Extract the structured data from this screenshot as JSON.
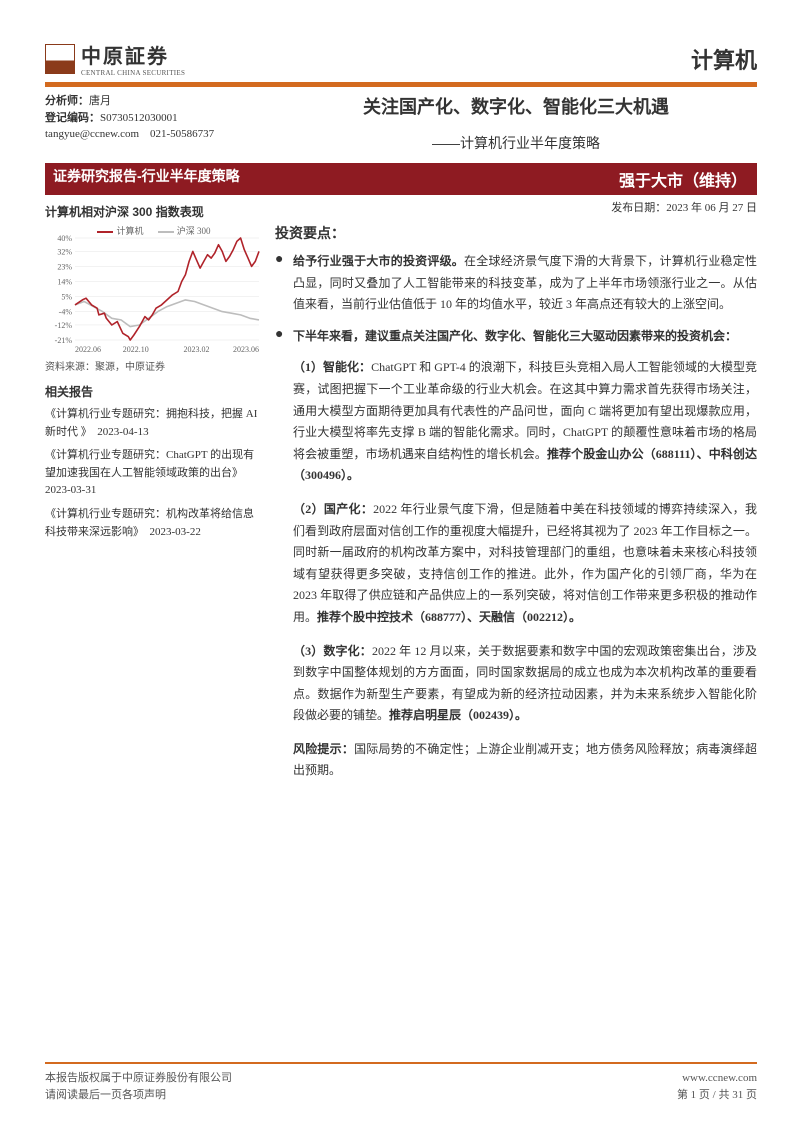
{
  "logo": {
    "name_cn": "中原証券",
    "name_en": "CENTRAL CHINA SECURITIES"
  },
  "sector": "计算机",
  "analyst": {
    "label": "分析师：",
    "name": "唐月",
    "cert_label": "登记编码：",
    "cert": "S0730512030001",
    "email": "tangyue@ccnew.com",
    "phone": "021-50586737"
  },
  "title": {
    "main": "关注国产化、数字化、智能化三大机遇",
    "sub": "——计算机行业半年度策略"
  },
  "red_strip": {
    "left": "证券研究报告-行业半年度策略",
    "right": "强于大市（维持）"
  },
  "publish": {
    "label": "发布日期：",
    "date": "2023 年 06 月 27 日"
  },
  "chart": {
    "title": "计算机相对沪深 300 指数表现",
    "source": "资料来源：聚源，中原证券",
    "series": [
      {
        "name": "计算机",
        "color": "#b0232a"
      },
      {
        "name": "沪深 300",
        "color": "#bdbdbd"
      }
    ],
    "y_ticks": [
      40,
      32,
      23,
      14,
      5,
      -4,
      -12,
      -21
    ],
    "x_labels": [
      "2022.06",
      "2022.10",
      "2023.02",
      "2023.06"
    ],
    "ylim": [
      -21,
      40
    ],
    "line_width": 1.6,
    "grid_color": "#e5e5e5",
    "background_color": "#ffffff",
    "tick_fontsize": 8,
    "legend_fontsize": 9,
    "computer_series_x": [
      0,
      0.04,
      0.06,
      0.09,
      0.12,
      0.13,
      0.16,
      0.17,
      0.2,
      0.23,
      0.26,
      0.29,
      0.3,
      0.32,
      0.35,
      0.38,
      0.4,
      0.42,
      0.44,
      0.47,
      0.5,
      0.53,
      0.56,
      0.58,
      0.6,
      0.62,
      0.64,
      0.66,
      0.68,
      0.7,
      0.72,
      0.74,
      0.76,
      0.78,
      0.8,
      0.82,
      0.84,
      0.86,
      0.88,
      0.9,
      0.92,
      0.94,
      0.96,
      0.98,
      1
    ],
    "computer_series_y": [
      0,
      3,
      4,
      0,
      -2,
      -6,
      -5,
      -8,
      -12,
      -10,
      -17,
      -19,
      -21,
      -18,
      -13,
      -7,
      -9,
      -6,
      -2,
      0,
      3,
      6,
      8,
      14,
      18,
      26,
      32,
      27,
      22,
      26,
      30,
      28,
      31,
      36,
      32,
      26,
      29,
      33,
      38,
      40,
      33,
      28,
      23,
      26,
      32
    ],
    "csi300_series_x": [
      0,
      0.05,
      0.1,
      0.15,
      0.2,
      0.25,
      0.3,
      0.35,
      0.4,
      0.45,
      0.5,
      0.55,
      0.6,
      0.65,
      0.7,
      0.75,
      0.8,
      0.85,
      0.9,
      0.95,
      1
    ],
    "csi300_series_y": [
      0,
      2,
      -1,
      -4,
      -8,
      -9,
      -13,
      -12,
      -8,
      -4,
      -1,
      1,
      3,
      2,
      0,
      -2,
      -4,
      -5,
      -6,
      -8,
      -9
    ]
  },
  "related": {
    "title": "相关报告",
    "items": [
      "《计算机行业专题研究：拥抱科技，把握 AI 新时代 》　2023-04-13",
      "《计算机行业专题研究：ChatGPT 的出现有望加速我国在人工智能领域政策的出台》　2023-03-31",
      "《计算机行业专题研究：机构改革将给信息科技带来深远影响》　2023-03-22"
    ]
  },
  "inv_points_title": "投资要点：",
  "bullets": [
    {
      "lead_bold": "给予行业强于大市的投资评级。",
      "text": "在全球经济景气度下滑的大背景下，计算机行业稳定性凸显，同时又叠加了人工智能带来的科技变革，成为了上半年市场领涨行业之一。从估值来看，当前行业估值低于 10 年的均值水平，较近 3 年高点还有较大的上涨空间。"
    },
    {
      "lead_bold": "下半年来看，建议重点关注国产化、数字化、智能化三大驱动因素带来的投资机会：",
      "text": ""
    }
  ],
  "subs": [
    {
      "lead_bold": "（1）智能化：",
      "text": "ChatGPT 和 GPT-4 的浪潮下，科技巨头竞相入局人工智能领域的大模型竞赛，试图把握下一个工业革命级的行业大机会。在这其中算力需求首先获得市场关注，通用大模型方面期待更加具有代表性的产品问世，面向 C 端将更加有望出现爆款应用，行业大模型将率先支撑 B 端的智能化需求。同时，ChatGPT 的颠覆性意味着市场的格局将会被重塑，市场机遇来自结构性的增长机会。",
      "tail_bold": "推荐个股金山办公（688111）、中科创达（300496）。"
    },
    {
      "lead_bold": "（2）国产化：",
      "text": "2022 年行业景气度下滑，但是随着中美在科技领域的博弈持续深入，我们看到政府层面对信创工作的重视度大幅提升，已经将其视为了 2023 年工作目标之一。同时新一届政府的机构改革方案中，对科技管理部门的重组，也意味着未来核心科技领域有望获得更多突破，支持信创工作的推进。此外，作为国产化的引领厂商，华为在 2023 年取得了供应链和产品供应上的一系列突破，将对信创工作带来更多积极的推动作用。",
      "tail_bold": "推荐个股中控技术（688777）、天融信（002212）。"
    },
    {
      "lead_bold": "（3）数字化：",
      "text": "2022 年 12 月以来，关于数据要素和数字中国的宏观政策密集出台，涉及到数字中国整体规划的方方面面，同时国家数据局的成立也成为本次机构改革的重要看点。数据作为新型生产要素，有望成为新的经济拉动因素，并为未来系统步入智能化阶段做必要的铺垫。",
      "tail_bold": "推荐启明星辰（002439）。"
    }
  ],
  "risk": {
    "label": "风险提示：",
    "text": "国际局势的不确定性；上游企业削减开支；地方债务风险释放；病毒演绎超出预期。"
  },
  "footer": {
    "left1": "本报告版权属于中原证券股份有限公司",
    "left2": "请阅读最后一页各项声明",
    "right_url": "www.ccnew.com",
    "right_page": "第 1 页 / 共 31 页"
  },
  "colors": {
    "accent_orange": "#d36a1f",
    "accent_red": "#8e1b22"
  }
}
